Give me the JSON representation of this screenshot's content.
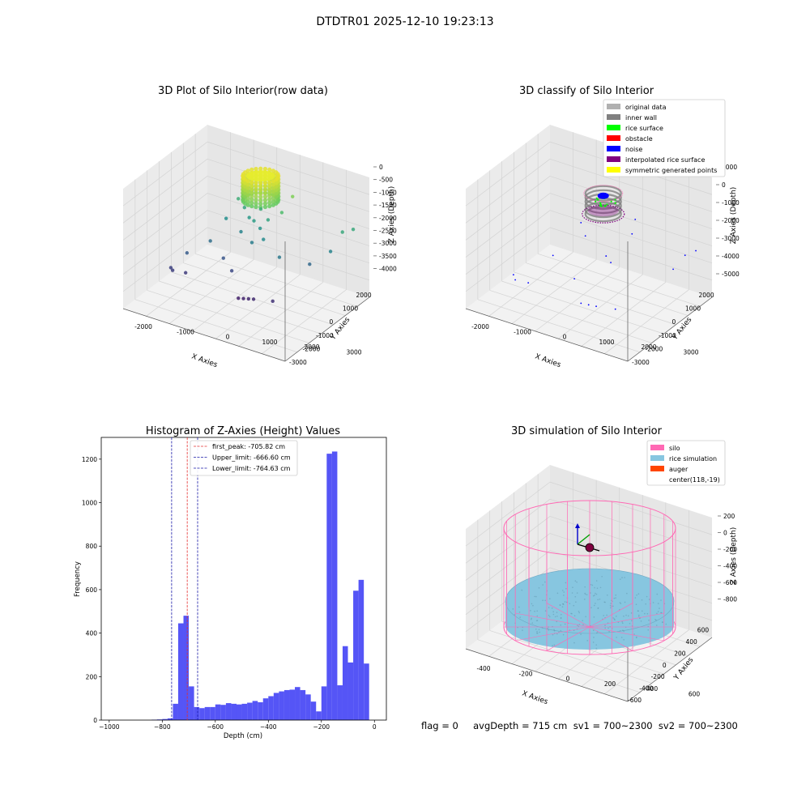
{
  "suptitle": "DTDTR01 2025-12-10 19:23:13",
  "status_text": "flag = 0     avgDepth = 715 cm  sv1 = 700~2300  sv2 = 700~2300",
  "colors": {
    "hist_bar": "#4c4cf5",
    "peak_line": "#e53030",
    "limit_line": "#1a1aa8",
    "silo": "#ff69b4",
    "rice_sim": "#87c6e0",
    "auger": "#ff4500"
  },
  "chart_data": [
    {
      "type": "scatter",
      "title": "3D Plot of Silo Interior(row data)",
      "xlabel": "X Axies",
      "ylabel": "Y Axies",
      "zlabel": "Z Axies (Depth)",
      "x_ticks": [
        "-2000",
        "-1000",
        "0",
        "1000",
        "2000",
        "3000"
      ],
      "y_ticks": [
        "-3000",
        "-2000",
        "-1000",
        "0",
        "1000",
        "2000"
      ],
      "z_ticks": [
        "0",
        "-500",
        "-1000",
        "-1500",
        "-2000",
        "-2500",
        "-3000",
        "-3500",
        "-4000"
      ],
      "xlim": [
        -2800,
        3600
      ],
      "ylim": [
        -3300,
        2600
      ],
      "zlim": [
        -4300,
        200
      ],
      "colormap": "viridis",
      "points": [
        {
          "x": -2100,
          "y": -1200,
          "z": -3400
        },
        {
          "x": -2000,
          "y": -1250,
          "z": -3450
        },
        {
          "x": -1600,
          "y": -1050,
          "z": -3500
        },
        {
          "x": -1800,
          "y": -600,
          "z": -3000
        },
        {
          "x": -1300,
          "y": 150,
          "z": -2700
        },
        {
          "x": -700,
          "y": 0,
          "z": -3100
        },
        {
          "x": -200,
          "y": -300,
          "z": -3300
        },
        {
          "x": 400,
          "y": -900,
          "z": -3900
        },
        {
          "x": 600,
          "y": -900,
          "z": -3850
        },
        {
          "x": 800,
          "y": -900,
          "z": -3800
        },
        {
          "x": 1000,
          "y": -900,
          "z": -3750
        },
        {
          "x": 1700,
          "y": -800,
          "z": -3650
        },
        {
          "x": 2200,
          "y": 900,
          "z": -2800
        },
        {
          "x": 2800,
          "y": 1300,
          "z": -2300
        },
        {
          "x": 3100,
          "y": 1600,
          "z": -1600
        },
        {
          "x": 3300,
          "y": 2000,
          "z": -1600
        },
        {
          "x": 1400,
          "y": 200,
          "z": -2500
        },
        {
          "x": 1100,
          "y": 900,
          "z": -1200
        },
        {
          "x": 1300,
          "y": 1300,
          "z": -700
        },
        {
          "x": -900,
          "y": 1400,
          "z": -1500
        },
        {
          "x": -600,
          "y": 1300,
          "z": -1700
        },
        {
          "x": -300,
          "y": 1100,
          "z": -1900
        },
        {
          "x": 0,
          "y": 900,
          "z": -1850
        },
        {
          "x": 300,
          "y": 800,
          "z": -2000
        },
        {
          "x": 500,
          "y": 1000,
          "z": -1700
        },
        {
          "x": 100,
          "y": 1200,
          "z": -1500
        },
        {
          "x": -1100,
          "y": 900,
          "z": -2100
        },
        {
          "x": -400,
          "y": 700,
          "z": -2300
        },
        {
          "x": 200,
          "y": 400,
          "z": -2400
        },
        {
          "x": 600,
          "y": 500,
          "z": -2200
        }
      ],
      "cluster": {
        "center_x": 150,
        "center_y": 1100,
        "top_z": -200,
        "bottom_z": -1100,
        "radius": 650
      }
    },
    {
      "type": "scatter",
      "title": "3D classify of Silo Interior",
      "xlabel": "X Axies",
      "ylabel": "Y Axies",
      "zlabel": "Z Axies (Depth)",
      "x_ticks": [
        "-2000",
        "-1000",
        "0",
        "1000",
        "2000",
        "3000"
      ],
      "y_ticks": [
        "-3000",
        "-2000",
        "-1000",
        "0",
        "1000",
        "2000"
      ],
      "z_ticks": [
        "1000",
        "0",
        "-1000",
        "-2000",
        "-3000",
        "-4000",
        "-5000"
      ],
      "xlim": [
        -2800,
        3600
      ],
      "ylim": [
        -3300,
        2600
      ],
      "zlim": [
        -5200,
        1200
      ],
      "legend": [
        {
          "label": "original data",
          "color": "#b0b0b0"
        },
        {
          "label": "inner wall",
          "color": "#808080"
        },
        {
          "label": "rice surface",
          "color": "#00ff00"
        },
        {
          "label": "obstacle",
          "color": "#ff0000"
        },
        {
          "label": "noise",
          "color": "#0000ff"
        },
        {
          "label": "interpolated rice surface",
          "color": "#800080"
        },
        {
          "label": "symmetric generated points",
          "color": "#ffff00"
        }
      ],
      "noise_points": [
        {
          "x": -2100,
          "y": -1200,
          "z": -4300
        },
        {
          "x": -2000,
          "y": -1250,
          "z": -4500
        },
        {
          "x": -1600,
          "y": -1050,
          "z": -4600
        },
        {
          "x": -1300,
          "y": 150,
          "z": -3700
        },
        {
          "x": -200,
          "y": -300,
          "z": -4200
        },
        {
          "x": 400,
          "y": -900,
          "z": -4900
        },
        {
          "x": 700,
          "y": -900,
          "z": -4850
        },
        {
          "x": 1000,
          "y": -900,
          "z": -4800
        },
        {
          "x": 1700,
          "y": -800,
          "z": -4700
        },
        {
          "x": 2800,
          "y": 1300,
          "z": -3300
        },
        {
          "x": 3100,
          "y": 1600,
          "z": -2600
        },
        {
          "x": 3300,
          "y": 2000,
          "z": -2500
        },
        {
          "x": 1400,
          "y": 900,
          "z": -1800
        },
        {
          "x": 1300,
          "y": 1300,
          "z": -1300
        },
        {
          "x": -900,
          "y": 1400,
          "z": -2500
        },
        {
          "x": 600,
          "y": 500,
          "z": -3100
        },
        {
          "x": -500,
          "y": 1000,
          "z": -2800
        },
        {
          "x": 900,
          "y": 300,
          "z": -3200
        }
      ],
      "cluster": {
        "center_x": 150,
        "center_y": 1100,
        "top_z": -300,
        "bottom_z": -1400,
        "radius": 650
      }
    },
    {
      "type": "bar",
      "title": "Histogram of Z-Axies (Height) Values",
      "xlabel": "Depth (cm)",
      "ylabel": "Frequency",
      "xlim": [
        -1030,
        45
      ],
      "ylim": [
        0,
        1300
      ],
      "x_ticks": [
        -1000,
        -800,
        -600,
        -400,
        -200,
        0
      ],
      "y_ticks": [
        0,
        200,
        400,
        600,
        800,
        1000,
        1200
      ],
      "bin_width": 20,
      "bin_starts": [
        -840,
        -820,
        -800,
        -780,
        -760,
        -740,
        -720,
        -700,
        -680,
        -660,
        -640,
        -620,
        -600,
        -580,
        -560,
        -540,
        -520,
        -500,
        -480,
        -460,
        -440,
        -420,
        -400,
        -380,
        -360,
        -340,
        -320,
        -300,
        -280,
        -260,
        -240,
        -220,
        -200,
        -180,
        -160,
        -140,
        -120,
        -100,
        -80,
        -60,
        -40,
        -20
      ],
      "values": [
        2,
        3,
        5,
        8,
        75,
        445,
        480,
        155,
        60,
        55,
        60,
        60,
        72,
        70,
        78,
        75,
        72,
        75,
        80,
        88,
        82,
        100,
        110,
        125,
        132,
        138,
        140,
        152,
        138,
        118,
        85,
        40,
        155,
        1225,
        1235,
        160,
        340,
        265,
        595,
        645,
        260,
        0
      ],
      "vlines": [
        {
          "x": -705.82,
          "label": "first_peak: -705.82 cm",
          "kind": "peak"
        },
        {
          "x": -666.6,
          "label": "Upper_limit: -666.60 cm",
          "kind": "limit"
        },
        {
          "x": -764.63,
          "label": "Lower_limit: -764.63 cm",
          "kind": "limit"
        }
      ]
    },
    {
      "type": "scatter",
      "title": "3D simulation of Silo Interior",
      "xlabel": "X Axies",
      "ylabel": "Y Axies",
      "zlabel": "Z Axies (Depth)",
      "x_ticks": [
        "-400",
        "-200",
        "0",
        "200",
        "400",
        "600"
      ],
      "y_ticks": [
        "-600",
        "-400",
        "-200",
        "0",
        "200",
        "400",
        "600"
      ],
      "z_ticks": [
        "200",
        "0",
        "-200",
        "-400",
        "-600",
        "-800"
      ],
      "xlim": [
        -520,
        760
      ],
      "ylim": [
        -760,
        760
      ],
      "zlim": [
        -1000,
        350
      ],
      "legend": [
        {
          "label": "silo",
          "color": "#ff69b4"
        },
        {
          "label": "rice simulation",
          "color": "#87c6e0"
        },
        {
          "label": "auger",
          "color": "#ff4500"
        },
        {
          "label": "center(118,-19)",
          "color": ""
        }
      ],
      "silo": {
        "center_x": 118,
        "center_y": -19,
        "radius": 700,
        "top_z": 100,
        "bottom_z": -1000
      },
      "rice_surface_z": -700,
      "auger": {
        "x": 118,
        "y": -19,
        "z": -100
      }
    }
  ]
}
